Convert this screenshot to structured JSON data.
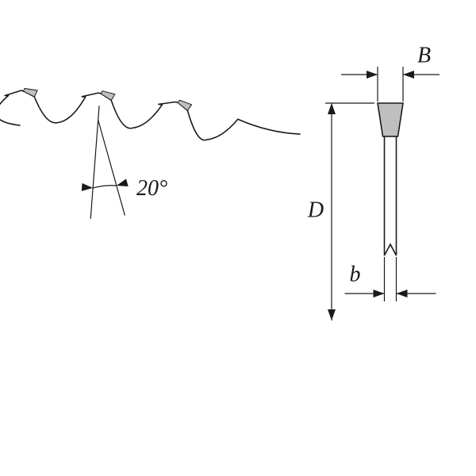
{
  "diagram": {
    "type": "engineering-dimension-diagram",
    "background_color": "#ffffff",
    "stroke_color": "#1a1a1a",
    "fill_gray": "#bfbfbf",
    "fill_white": "#ffffff",
    "stroke_width_main": 1.6,
    "stroke_width_thin": 1.2,
    "font_family": "Times New Roman, serif",
    "font_style": "italic",
    "labels": {
      "angle": "20°",
      "diameter": "D",
      "kerf_upper": "B",
      "kerf_lower": "b"
    },
    "font_sizes": {
      "angle": 28,
      "D": 28,
      "B": 28,
      "b": 28
    },
    "arrow": {
      "length": 14,
      "half_width": 5
    },
    "teeth": {
      "angle_deg": 20,
      "count_visible": 3
    },
    "side_profile": {
      "tip_width_B": 32,
      "body_width_b": 15,
      "height_D": 275
    }
  }
}
